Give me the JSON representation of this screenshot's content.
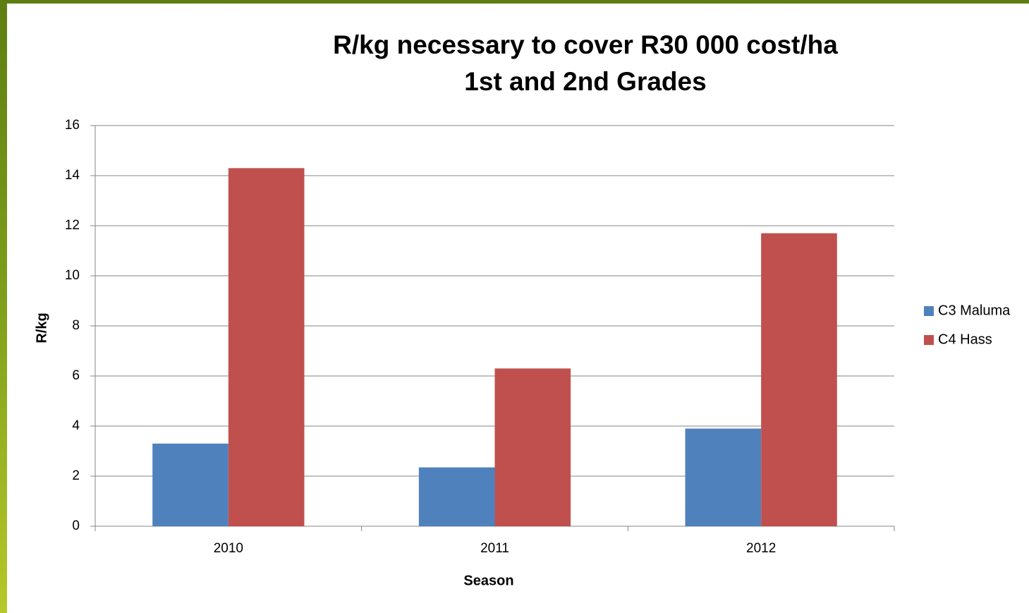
{
  "chart_data": {
    "type": "bar",
    "title": [
      "R/kg necessary to cover R30 000 cost/ha",
      "1st and 2nd Grades"
    ],
    "x_label": "Season",
    "y_label": "R/kg",
    "categories": [
      "2010",
      "2011",
      "2012"
    ],
    "series": [
      {
        "name": "C3 Maluma",
        "color": "#4f81bd",
        "values": [
          3.3,
          2.35,
          3.9
        ]
      },
      {
        "name": "C4 Hass",
        "color": "#c0504d",
        "values": [
          14.3,
          6.3,
          11.7
        ]
      }
    ],
    "ylim": [
      0,
      16
    ],
    "yticks": [
      0,
      2,
      4,
      6,
      8,
      10,
      12,
      14,
      16
    ],
    "grid": true,
    "legend": "right"
  }
}
